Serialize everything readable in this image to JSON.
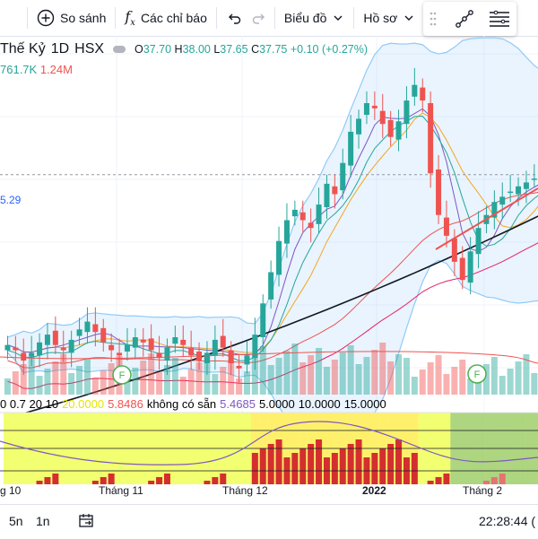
{
  "toolbar": {
    "compare_label": "So sánh",
    "indicators_label": "Các chỉ báo",
    "chart_type_label": "Biểu đồ",
    "profile_label": "Hồ sơ"
  },
  "legend": {
    "symbol": "Thế Kỷ",
    "interval": "1D",
    "exchange": "HSX",
    "open_label": "O",
    "open": "37.70",
    "high_label": "H",
    "high": "38.00",
    "low_label": "L",
    "low": "37.65",
    "close_label": "C",
    "close": "37.75",
    "change": "+0.10 (+0.27%)"
  },
  "volume": {
    "v1": "761.7K",
    "v2": "1.24M"
  },
  "side_value": "5.29",
  "indicator_legend": {
    "params": "0 0.7 20 10",
    "p1": "20.0000",
    "p2": "5.8486",
    "na": "không có sẵn",
    "p3": "5.4685",
    "p4": "5.0000",
    "p5": "10.0000",
    "p6": "15.0000"
  },
  "event_marker": "F",
  "x_axis": {
    "labels": [
      "g 10",
      "Tháng 11",
      "Tháng 12",
      "2022",
      "Tháng 2"
    ]
  },
  "bottom": {
    "range_5d": "5n",
    "range_1d": "1n",
    "clock": "22:28:44 ("
  },
  "colors": {
    "up": "#26a69a",
    "down": "#ef5350",
    "band": "#90caf9",
    "ma_long": "#131722",
    "accent": "#2962ff"
  },
  "icons": [
    "plus-circle-icon",
    "fx-icon",
    "undo-icon",
    "redo-icon",
    "chevron-down-icon",
    "drag-handle-icon",
    "trend-line-icon",
    "menu-lines-icon",
    "date-range-icon"
  ],
  "chart_data": {
    "type": "candlestick",
    "title": "",
    "xlabel": "",
    "ylabel": "",
    "x": [
      "Oct",
      "Nov",
      "Dec",
      "2022",
      "Feb"
    ],
    "closes": [
      31.2,
      31.0,
      30.6,
      30.9,
      31.3,
      31.6,
      31.2,
      31.0,
      31.4,
      31.8,
      32.1,
      31.7,
      31.3,
      31.0,
      30.8,
      31.2,
      31.5,
      31.3,
      31.0,
      30.7,
      31.1,
      31.5,
      31.2,
      30.8,
      30.6,
      30.9,
      31.4,
      31.1,
      30.5,
      30.3,
      30.8,
      31.6,
      32.8,
      34.0,
      35.2,
      36.0,
      36.4,
      36.0,
      35.7,
      36.6,
      37.4,
      37.0,
      38.2,
      39.4,
      39.9,
      40.5,
      40.3,
      39.7,
      39.2,
      39.8,
      40.6,
      41.2,
      40.6,
      37.8,
      36.2,
      35.4,
      34.4,
      33.7,
      34.8,
      35.7,
      36.2,
      36.7,
      36.9,
      37.1,
      37.3,
      37.45,
      37.6,
      37.75
    ],
    "volume_state": "mixed",
    "overlays": [
      "Bollinger Bands",
      "moving averages",
      "long moving average"
    ]
  }
}
